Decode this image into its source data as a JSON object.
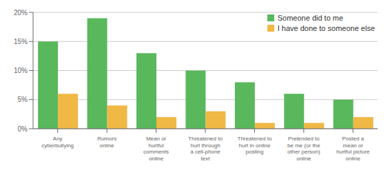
{
  "chart_data": {
    "type": "bar",
    "categories": [
      "Any\ncyberbullying",
      "Rumors\nonline",
      "Mean or\nhurtful\ncomments\nonline",
      "Threatened to\nhurt through\na cell-phone\ntext",
      "Threatened to\nhurt in online\nposting",
      "Pretended to\nbe me (or the\nother person)\nonline",
      "Posted a\nmean or\nhurtful picture\nonline"
    ],
    "series": [
      {
        "name": "Someone did to me",
        "color": "#5ab85c",
        "values": [
          15,
          19,
          13,
          10,
          8,
          6,
          5
        ]
      },
      {
        "name": "I have done to someone else",
        "color": "#f0b845",
        "values": [
          6,
          4,
          2,
          3,
          1,
          1,
          2
        ]
      }
    ],
    "ylim": [
      0,
      20
    ],
    "yticks": [
      {
        "value": 0,
        "label": "0%"
      },
      {
        "value": 5,
        "label": "5%"
      },
      {
        "value": 10,
        "label": "10%"
      },
      {
        "value": 15,
        "label": "15%"
      },
      {
        "value": 20,
        "label": "20%"
      }
    ],
    "grid": true,
    "legend": "upper right"
  }
}
